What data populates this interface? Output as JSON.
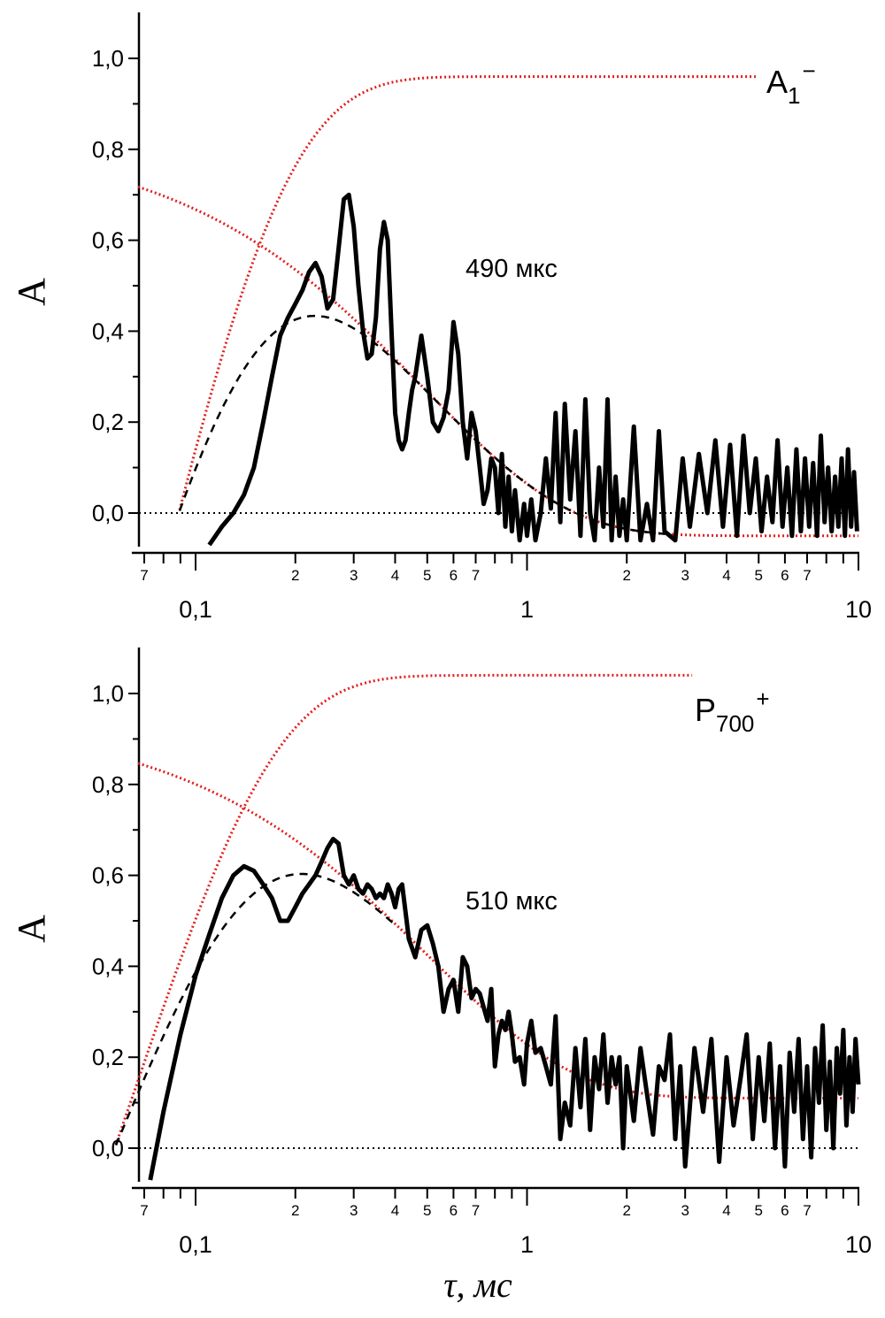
{
  "chart_data": [
    {
      "type": "line",
      "panel": "top",
      "species_label": {
        "main": "A",
        "sub": "1",
        "sup": "−"
      },
      "annotation": "490 мкс",
      "tau_us": 490,
      "ylabel": "A",
      "xlabel": "",
      "xscale": "log",
      "xlim": [
        0.065,
        10
      ],
      "ylim": [
        -0.07,
        1.1
      ],
      "ytick_labels": [
        "0,0",
        "0,2",
        "0,4",
        "0,6",
        "0,8",
        "1,0"
      ],
      "ytick_values": [
        0,
        0.2,
        0.4,
        0.6,
        0.8,
        1.0
      ],
      "xmajor_labels": [
        "0,1",
        "1",
        "10"
      ],
      "xmajor_values": [
        0.1,
        1,
        10
      ],
      "xminor_labels": [
        "7",
        "2",
        "3",
        "4",
        "5",
        "6",
        "7",
        "2",
        "3",
        "4",
        "5",
        "6",
        "7"
      ],
      "xminor_values": [
        0.07,
        0.2,
        0.3,
        0.4,
        0.5,
        0.6,
        0.7,
        2,
        3,
        4,
        5,
        6,
        7
      ],
      "rise": {
        "amp": 0.96,
        "t0": 0.089,
        "tau": 0.07
      },
      "decay": {
        "amp": 0.88,
        "offset": -0.05,
        "tau": 0.49
      },
      "fit_end_x": 2.7,
      "fit_curve_note": "dashed black = rise x decay",
      "series": [
        {
          "name": "measured",
          "x": [
            0.11,
            0.12,
            0.13,
            0.14,
            0.15,
            0.16,
            0.17,
            0.18,
            0.19,
            0.2,
            0.21,
            0.22,
            0.23,
            0.24,
            0.25,
            0.26,
            0.27,
            0.28,
            0.29,
            0.3,
            0.31,
            0.32,
            0.33,
            0.34,
            0.35,
            0.36,
            0.37,
            0.38,
            0.39,
            0.4,
            0.41,
            0.42,
            0.43,
            0.44,
            0.45,
            0.46,
            0.48,
            0.5,
            0.52,
            0.54,
            0.56,
            0.58,
            0.6,
            0.62,
            0.64,
            0.66,
            0.68,
            0.7,
            0.72,
            0.74,
            0.76,
            0.78,
            0.8,
            0.82,
            0.84,
            0.86,
            0.88,
            0.9,
            0.92,
            0.95,
            0.98,
            1.0,
            1.03,
            1.06,
            1.1,
            1.14,
            1.18,
            1.22,
            1.26,
            1.3,
            1.35,
            1.4,
            1.45,
            1.5,
            1.55,
            1.6,
            1.65,
            1.7,
            1.75,
            1.8,
            1.85,
            1.9,
            1.95,
            2.0,
            2.1,
            2.2,
            2.3,
            2.4,
            2.5,
            2.6,
            2.8,
            2.95,
            3.1,
            3.3,
            3.5,
            3.7,
            3.9,
            4.1,
            4.3,
            4.5,
            4.7,
            4.9,
            5.1,
            5.3,
            5.5,
            5.7,
            5.9,
            6.1,
            6.3,
            6.5,
            6.7,
            6.9,
            7.1,
            7.3,
            7.5,
            7.7,
            7.9,
            8.1,
            8.3,
            8.5,
            8.7,
            8.9,
            9.1,
            9.3,
            9.5,
            9.7,
            9.9
          ],
          "y": [
            -0.07,
            -0.03,
            0.0,
            0.04,
            0.1,
            0.2,
            0.3,
            0.39,
            0.43,
            0.46,
            0.49,
            0.53,
            0.55,
            0.52,
            0.45,
            0.47,
            0.58,
            0.69,
            0.7,
            0.63,
            0.5,
            0.4,
            0.34,
            0.35,
            0.43,
            0.58,
            0.64,
            0.6,
            0.4,
            0.22,
            0.16,
            0.14,
            0.16,
            0.22,
            0.27,
            0.3,
            0.39,
            0.3,
            0.2,
            0.18,
            0.21,
            0.27,
            0.42,
            0.35,
            0.2,
            0.12,
            0.22,
            0.18,
            0.1,
            0.02,
            0.05,
            0.12,
            0.1,
            0.0,
            0.13,
            -0.03,
            0.08,
            -0.04,
            0.05,
            -0.06,
            0.02,
            -0.05,
            0.03,
            -0.06,
            0.0,
            0.12,
            0.01,
            0.22,
            -0.02,
            0.24,
            0.03,
            0.18,
            -0.05,
            0.25,
            0.0,
            -0.06,
            0.1,
            -0.03,
            0.25,
            -0.06,
            0.08,
            -0.05,
            0.03,
            -0.06,
            0.19,
            -0.06,
            0.02,
            -0.06,
            0.18,
            -0.04,
            -0.06,
            0.12,
            -0.03,
            0.13,
            0.0,
            0.16,
            -0.03,
            0.15,
            -0.05,
            0.17,
            0.0,
            0.12,
            -0.04,
            0.08,
            -0.02,
            0.16,
            -0.03,
            0.1,
            -0.05,
            0.14,
            -0.04,
            0.12,
            -0.03,
            0.11,
            -0.05,
            0.17,
            -0.02,
            0.1,
            -0.04,
            0.08,
            -0.03,
            0.12,
            -0.05,
            0.14,
            -0.03,
            0.09,
            -0.04
          ]
        }
      ]
    },
    {
      "type": "line",
      "panel": "bottom",
      "species_label": {
        "main": "P",
        "sub": "700",
        "sup": "+"
      },
      "annotation": "510 мкс",
      "tau_us": 510,
      "ylabel": "A",
      "xlabel": "τ, мс",
      "xscale": "log",
      "xlim": [
        0.065,
        10
      ],
      "ylim": [
        -0.07,
        1.1
      ],
      "ytick_labels": [
        "0,0",
        "0,2",
        "0,4",
        "0,6",
        "0,8",
        "1,0"
      ],
      "ytick_values": [
        0,
        0.2,
        0.4,
        0.6,
        0.8,
        1.0
      ],
      "xmajor_labels": [
        "0,1",
        "1",
        "10"
      ],
      "xmajor_values": [
        0.1,
        1,
        10
      ],
      "xminor_labels": [
        "7",
        "2",
        "3",
        "4",
        "5",
        "6",
        "7",
        "2",
        "3",
        "4",
        "5",
        "6",
        "7"
      ],
      "xminor_values": [
        0.07,
        0.2,
        0.3,
        0.4,
        0.5,
        0.6,
        0.7,
        2,
        3,
        4,
        5,
        6,
        7
      ],
      "rise": {
        "amp": 1.04,
        "t0": 0.057,
        "tau": 0.065
      },
      "decay": {
        "amp": 0.84,
        "offset": 0.11,
        "tau": 0.51
      },
      "fit_end_x": 0.4,
      "fit_curve_note": "dashed black = rise x decay",
      "series": [
        {
          "name": "measured",
          "x": [
            0.073,
            0.08,
            0.09,
            0.1,
            0.11,
            0.12,
            0.13,
            0.14,
            0.15,
            0.16,
            0.17,
            0.18,
            0.19,
            0.2,
            0.21,
            0.22,
            0.23,
            0.24,
            0.25,
            0.26,
            0.27,
            0.28,
            0.29,
            0.3,
            0.31,
            0.32,
            0.33,
            0.34,
            0.35,
            0.36,
            0.37,
            0.38,
            0.39,
            0.4,
            0.41,
            0.42,
            0.44,
            0.46,
            0.48,
            0.5,
            0.52,
            0.54,
            0.56,
            0.58,
            0.6,
            0.62,
            0.64,
            0.66,
            0.68,
            0.7,
            0.72,
            0.74,
            0.76,
            0.78,
            0.8,
            0.82,
            0.84,
            0.86,
            0.88,
            0.9,
            0.92,
            0.95,
            0.98,
            1.0,
            1.03,
            1.06,
            1.1,
            1.14,
            1.18,
            1.22,
            1.26,
            1.3,
            1.35,
            1.4,
            1.45,
            1.5,
            1.55,
            1.6,
            1.65,
            1.7,
            1.75,
            1.8,
            1.85,
            1.9,
            1.95,
            2.0,
            2.1,
            2.2,
            2.3,
            2.4,
            2.5,
            2.6,
            2.7,
            2.8,
            2.9,
            3.0,
            3.2,
            3.4,
            3.6,
            3.8,
            4.0,
            4.2,
            4.4,
            4.6,
            4.8,
            5.0,
            5.2,
            5.4,
            5.6,
            5.8,
            6.0,
            6.2,
            6.4,
            6.6,
            6.8,
            7.0,
            7.2,
            7.4,
            7.6,
            7.8,
            8.0,
            8.2,
            8.4,
            8.6,
            8.8,
            9.0,
            9.2,
            9.4,
            9.6,
            9.8,
            10.0
          ],
          "y": [
            -0.07,
            0.08,
            0.25,
            0.38,
            0.47,
            0.55,
            0.6,
            0.62,
            0.61,
            0.58,
            0.55,
            0.5,
            0.5,
            0.53,
            0.56,
            0.58,
            0.6,
            0.63,
            0.66,
            0.68,
            0.67,
            0.6,
            0.58,
            0.6,
            0.57,
            0.56,
            0.58,
            0.57,
            0.55,
            0.56,
            0.55,
            0.58,
            0.56,
            0.53,
            0.57,
            0.58,
            0.46,
            0.42,
            0.48,
            0.49,
            0.45,
            0.4,
            0.3,
            0.35,
            0.37,
            0.3,
            0.42,
            0.4,
            0.33,
            0.35,
            0.34,
            0.31,
            0.28,
            0.35,
            0.18,
            0.25,
            0.28,
            0.26,
            0.3,
            0.25,
            0.19,
            0.2,
            0.14,
            0.23,
            0.28,
            0.21,
            0.22,
            0.18,
            0.14,
            0.29,
            0.02,
            0.1,
            0.05,
            0.22,
            0.09,
            0.24,
            0.04,
            0.2,
            0.13,
            0.25,
            0.1,
            0.2,
            0.14,
            0.2,
            0.0,
            0.18,
            0.06,
            0.22,
            0.12,
            0.03,
            0.18,
            0.15,
            0.25,
            0.02,
            0.18,
            -0.04,
            0.22,
            0.08,
            0.24,
            -0.03,
            0.2,
            0.05,
            0.15,
            0.25,
            0.02,
            0.2,
            0.06,
            0.23,
            0.0,
            0.18,
            -0.04,
            0.21,
            0.08,
            0.24,
            0.02,
            0.18,
            -0.02,
            0.22,
            0.1,
            0.27,
            0.04,
            0.19,
            0.0,
            0.22,
            0.12,
            0.26,
            0.05,
            0.2,
            0.08,
            0.24,
            0.14
          ]
        }
      ]
    }
  ]
}
